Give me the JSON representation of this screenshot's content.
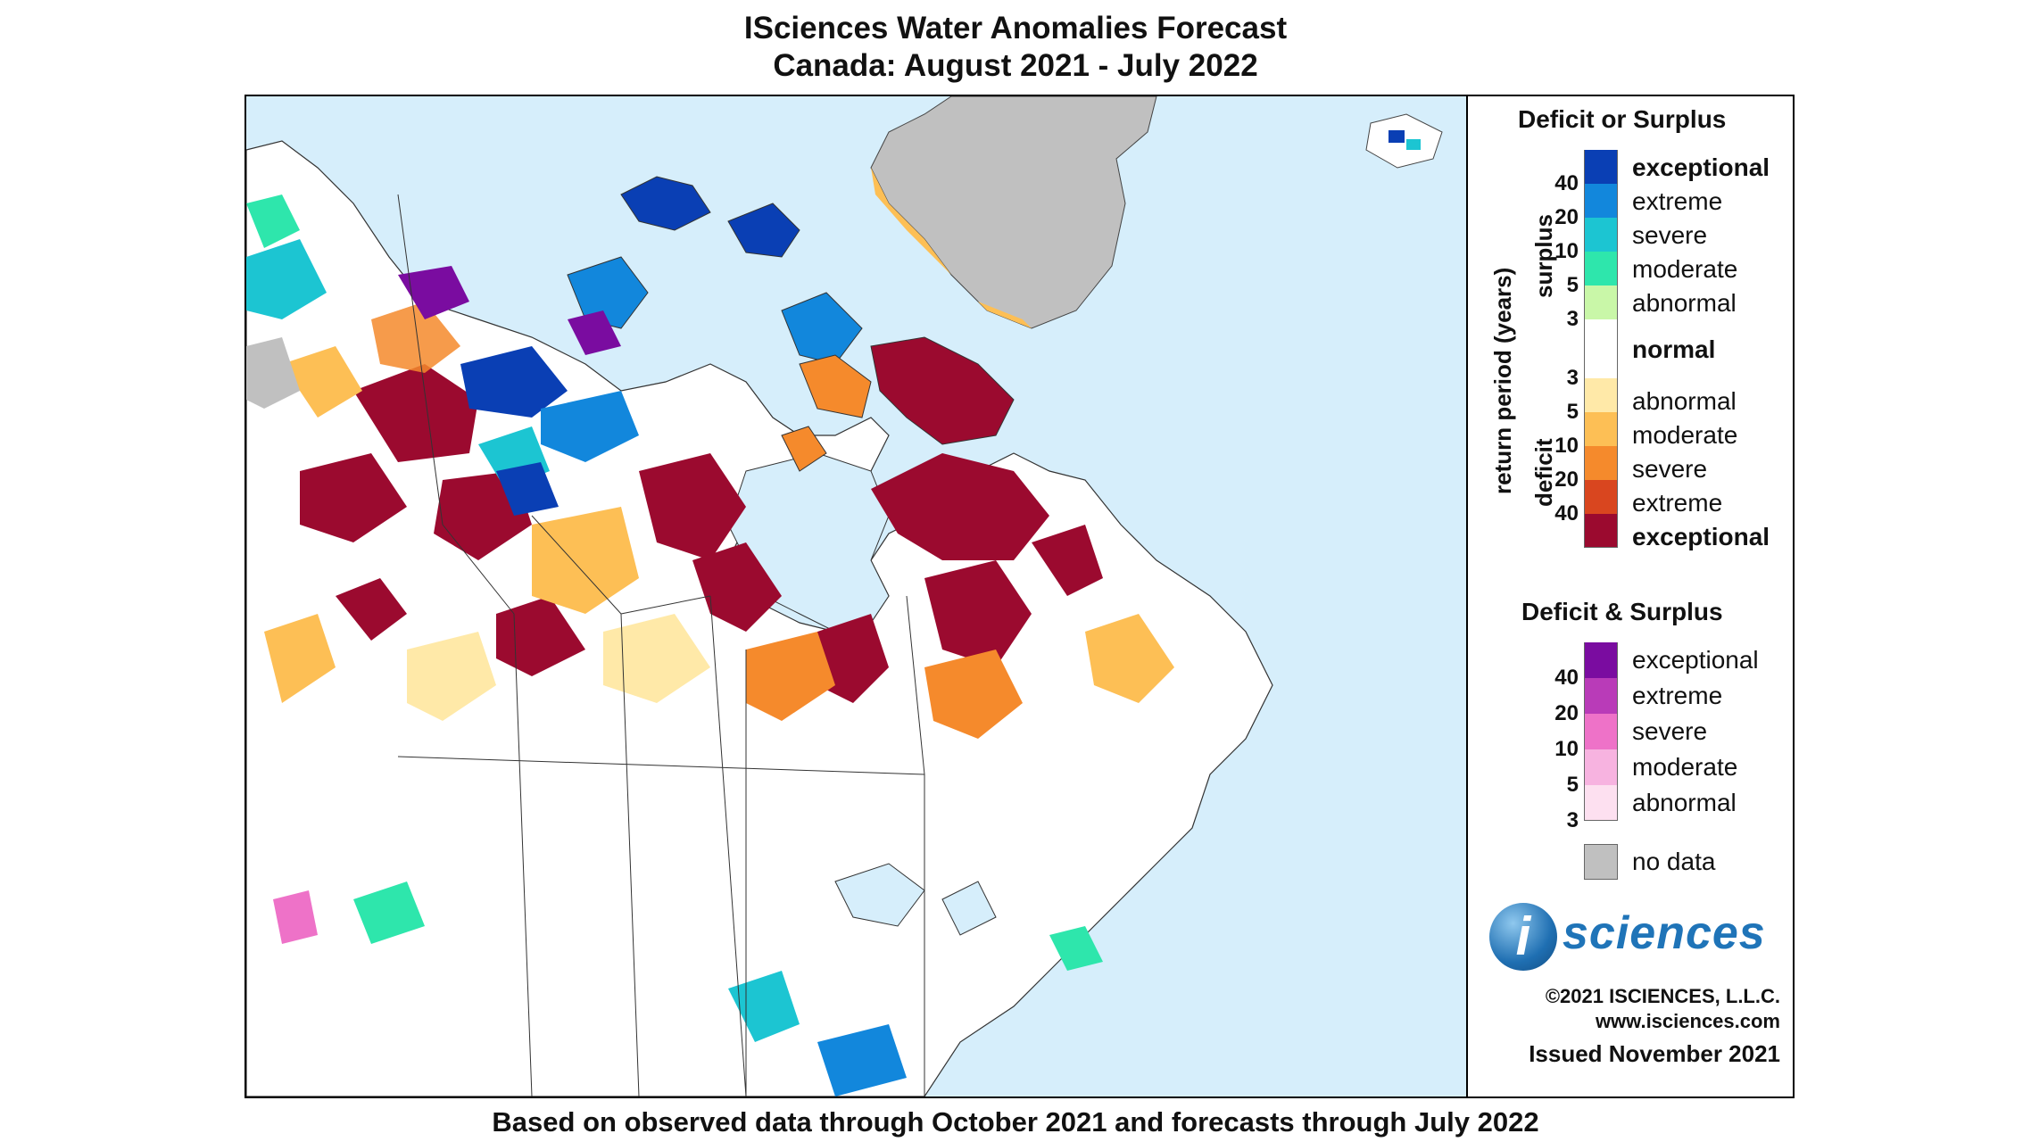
{
  "title": {
    "line1": "ISciences Water Anomalies Forecast",
    "line2": "Canada: August 2021 - July 2022"
  },
  "footer": "Based on observed data through October 2021 and forecasts through July 2022",
  "legend": {
    "deficit_or_surplus": {
      "heading": "Deficit or Surplus",
      "axis_label": "return period (years)",
      "surplus_label": "surplus",
      "deficit_label": "deficit",
      "surplus": [
        {
          "label": "exceptional",
          "color": "#0a3fb4"
        },
        {
          "label": "extreme",
          "color": "#1287dc"
        },
        {
          "label": "severe",
          "color": "#1cc5d2"
        },
        {
          "label": "moderate",
          "color": "#2ee6ac"
        },
        {
          "label": "abnormal",
          "color": "#c9f7a8"
        }
      ],
      "surplus_ticks": [
        "40",
        "20",
        "10",
        "5",
        "3"
      ],
      "normal": {
        "label": "normal",
        "color": "#ffffff"
      },
      "deficit": [
        {
          "label": "abnormal",
          "color": "#ffe9a8"
        },
        {
          "label": "moderate",
          "color": "#fdbf55"
        },
        {
          "label": "severe",
          "color": "#f58a2c"
        },
        {
          "label": "extreme",
          "color": "#d9461f"
        },
        {
          "label": "exceptional",
          "color": "#9b0a2f"
        }
      ],
      "deficit_ticks": [
        "3",
        "5",
        "10",
        "20",
        "40"
      ]
    },
    "deficit_and_surplus": {
      "heading": "Deficit & Surplus",
      "classes": [
        {
          "label": "exceptional",
          "color": "#7a0ca0"
        },
        {
          "label": "extreme",
          "color": "#b93bb8"
        },
        {
          "label": "severe",
          "color": "#ee72c8"
        },
        {
          "label": "moderate",
          "color": "#f7b3e0"
        },
        {
          "label": "abnormal",
          "color": "#fde0f0"
        }
      ],
      "ticks": [
        "40",
        "20",
        "10",
        "5",
        "3"
      ]
    },
    "no_data": {
      "label": "no data",
      "color": "#c0c0c0"
    }
  },
  "branding": {
    "logo_letter": "i",
    "logo_word": "sciences",
    "copyright": "©2021 ISCIENCES, L.L.C.",
    "website": "www.isciences.com",
    "issued": "Issued November 2021"
  }
}
